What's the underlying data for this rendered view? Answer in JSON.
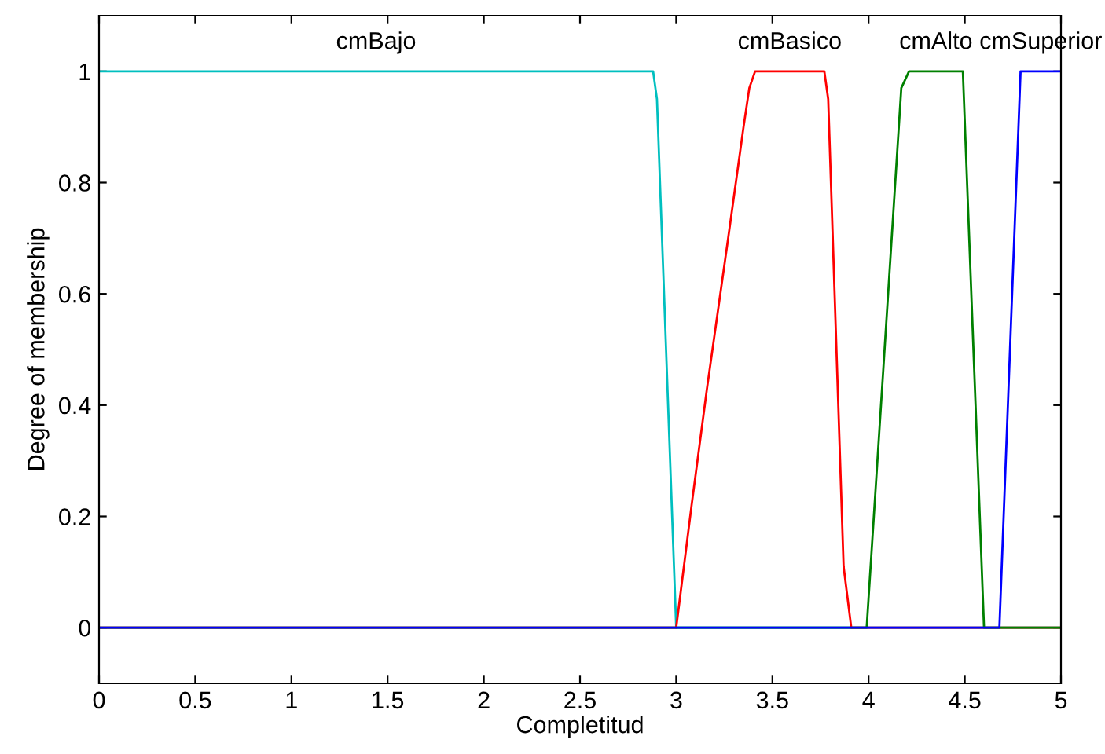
{
  "chart_data": {
    "type": "line",
    "xlabel": "Completitud",
    "ylabel": "Degree of membership",
    "xlim": [
      0,
      5
    ],
    "ylim": [
      -0.1,
      1.1
    ],
    "xticks": [
      0,
      0.5,
      1,
      1.5,
      2,
      2.5,
      3,
      3.5,
      4,
      4.5,
      5
    ],
    "yticks": [
      0,
      0.2,
      0.4,
      0.6,
      0.8,
      1
    ],
    "grid": false,
    "legend": false,
    "marker": "none",
    "line_style": "solid",
    "series": [
      {
        "name": "cmBajo",
        "color": "#00bfbf",
        "x": [
          0,
          2.88,
          2.9,
          3.0,
          5
        ],
        "values": [
          1,
          1,
          0.95,
          0,
          0
        ]
      },
      {
        "name": "cmBasico",
        "color": "#ff0000",
        "x": [
          0,
          3.0,
          3.08,
          3.16,
          3.27,
          3.35,
          3.38,
          3.41,
          3.77,
          3.79,
          3.87,
          3.91,
          5
        ],
        "values": [
          0,
          0,
          0.22,
          0.43,
          0.7,
          0.9,
          0.97,
          1,
          1,
          0.95,
          0.11,
          0,
          0
        ]
      },
      {
        "name": "cmAlto",
        "color": "#008000",
        "x": [
          0,
          3.99,
          4.07,
          4.17,
          4.21,
          4.49,
          4.6,
          5
        ],
        "values": [
          0,
          0,
          0.43,
          0.97,
          1,
          1,
          0,
          0
        ]
      },
      {
        "name": "cmSuperior",
        "color": "#0000ff",
        "x": [
          0,
          4.68,
          4.79,
          5
        ],
        "values": [
          0,
          0,
          1,
          1
        ]
      }
    ]
  }
}
